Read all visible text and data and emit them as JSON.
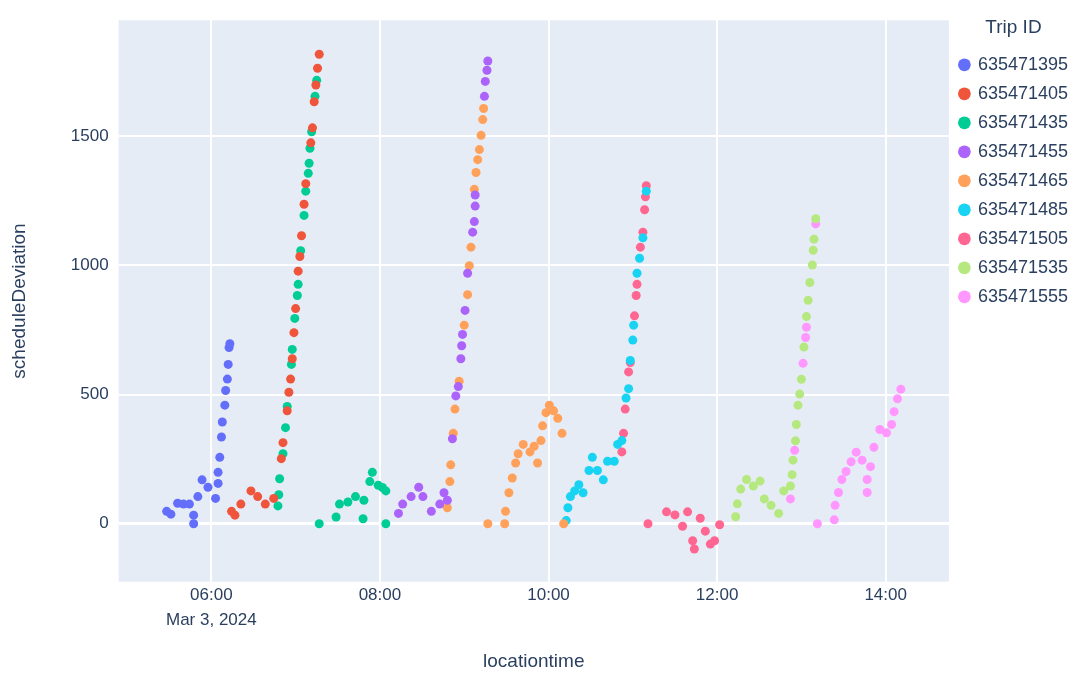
{
  "chart_data": {
    "type": "scatter",
    "xlabel": "locationtime",
    "ylabel": "scheduleDeviation",
    "legend_title": "Trip ID",
    "legend": "right",
    "grid": true,
    "marker": "circle",
    "xlim": [
      4.9,
      14.75
    ],
    "ylim": [
      -225,
      1950
    ],
    "xticks": [
      {
        "value": 6,
        "label": "06:00"
      },
      {
        "value": 8,
        "label": "08:00"
      },
      {
        "value": 10,
        "label": "10:00"
      },
      {
        "value": 12,
        "label": "12:00"
      },
      {
        "value": 14,
        "label": "14:00"
      }
    ],
    "yticks": [
      0,
      500,
      1000,
      1500
    ],
    "annotations": [
      "Mar 3, 2024"
    ],
    "series": [
      {
        "name": "635471395",
        "color": "#636efa",
        "x": [
          5.47,
          5.52,
          5.6,
          5.67,
          5.74,
          5.79,
          5.79,
          5.84,
          5.89,
          5.96,
          6.05,
          6.08,
          6.08,
          6.1,
          6.12,
          6.13,
          6.16,
          6.17,
          6.19,
          6.2,
          6.21,
          6.22
        ],
        "values": [
          48,
          37,
          79,
          76,
          76,
          33,
          0,
          105,
          170,
          141,
          98,
          156,
          199,
          257,
          336,
          394,
          459,
          516,
          560,
          617,
          682,
          697
        ]
      },
      {
        "name": "635471405",
        "color": "#ef553b",
        "x": [
          6.24,
          6.28,
          6.35,
          6.47,
          6.55,
          6.64,
          6.74,
          6.83,
          6.85,
          6.9,
          6.92,
          6.94,
          6.96,
          6.98,
          7.0,
          7.03,
          7.05,
          7.07,
          7.1,
          7.12,
          7.18,
          7.2,
          7.22,
          7.24,
          7.26,
          7.28
        ],
        "values": [
          48,
          33,
          76,
          127,
          105,
          76,
          98,
          252,
          314,
          437,
          509,
          560,
          639,
          740,
          833,
          978,
          1035,
          1115,
          1237,
          1317,
          1475,
          1533,
          1634,
          1699,
          1764,
          1818
        ]
      },
      {
        "name": "635471435",
        "color": "#00cc96",
        "x": [
          6.79,
          6.8,
          6.81,
          6.85,
          6.88,
          6.9,
          6.95,
          6.96,
          6.99,
          7.02,
          7.03,
          7.06,
          7.1,
          7.12,
          7.15,
          7.16,
          7.17,
          7.19,
          7.23,
          7.25,
          7.28,
          7.48,
          7.52,
          7.62,
          7.71,
          7.8,
          7.81,
          7.88,
          7.91,
          7.98,
          8.03,
          8.07,
          8.07
        ],
        "values": [
          69,
          112,
          174,
          271,
          372,
          454,
          617,
          675,
          795,
          884,
          927,
          1057,
          1194,
          1288,
          1357,
          1396,
          1454,
          1518,
          1655,
          1717,
          0,
          26,
          76,
          84,
          105,
          19,
          91,
          163,
          199,
          149,
          140,
          127,
          0
        ]
      },
      {
        "name": "635471455",
        "color": "#ab63fa",
        "x": [
          8.22,
          8.27,
          8.37,
          8.46,
          8.51,
          8.61,
          8.71,
          8.76,
          8.8,
          8.86,
          8.9,
          8.93,
          8.96,
          8.97,
          8.98,
          9.01,
          9.04,
          9.1,
          9.12,
          9.13,
          9.13,
          9.24,
          9.25,
          9.27,
          9.28
        ],
        "values": [
          40,
          76,
          105,
          141,
          105,
          48,
          76,
          120,
          91,
          329,
          495,
          531,
          639,
          689,
          733,
          826,
          970,
          1129,
          1170,
          1230,
          1273,
          1655,
          1713,
          1756,
          1792
        ]
      },
      {
        "name": "635471465",
        "color": "#ffa15a",
        "x": [
          8.8,
          8.83,
          8.84,
          8.87,
          8.89,
          8.94,
          9.0,
          9.04,
          9.06,
          9.08,
          9.12,
          9.14,
          9.16,
          9.18,
          9.2,
          9.22,
          9.23,
          9.28,
          9.48,
          9.49,
          9.53,
          9.57,
          9.61,
          9.64,
          9.7,
          9.78,
          9.83,
          9.87,
          9.91,
          9.93,
          9.97,
          10.01,
          10.06,
          10.11,
          10.16,
          10.18
        ],
        "values": [
          62,
          163,
          228,
          350,
          444,
          552,
          769,
          887,
          999,
          1071,
          1295,
          1360,
          1410,
          1449,
          1504,
          1565,
          1608,
          0,
          0,
          48,
          120,
          177,
          235,
          271,
          307,
          278,
          300,
          235,
          322,
          379,
          430,
          459,
          437,
          408,
          350,
          0
        ]
      },
      {
        "name": "635471485",
        "color": "#19d3f3",
        "x": [
          10.21,
          10.23,
          10.26,
          10.31,
          10.36,
          10.41,
          10.48,
          10.52,
          10.58,
          10.65,
          10.7,
          10.78,
          10.82,
          10.87,
          10.92,
          10.95,
          10.97,
          11.0,
          11.01,
          11.05,
          11.08,
          11.12,
          11.16
        ],
        "values": [
          12,
          62,
          105,
          127,
          151,
          120,
          206,
          257,
          206,
          170,
          242,
          242,
          307,
          322,
          487,
          523,
          632,
          711,
          769,
          970,
          1028,
          1107,
          1288
        ]
      },
      {
        "name": "635471505",
        "color": "#ff6692",
        "x": [
          10.87,
          10.89,
          10.91,
          10.95,
          10.97,
          11.02,
          11.04,
          11.05,
          11.09,
          11.12,
          11.14,
          11.15,
          11.16,
          11.18,
          11.4,
          11.5,
          11.59,
          11.65,
          11.71,
          11.73,
          11.8,
          11.86,
          11.92,
          11.97,
          12.03
        ],
        "values": [
          278,
          350,
          444,
          588,
          624,
          805,
          884,
          927,
          1071,
          1129,
          1216,
          1266,
          1309,
          0,
          46,
          34,
          -10,
          46,
          -66,
          -98,
          21,
          -29,
          -79,
          -66,
          -4
        ]
      },
      {
        "name": "635471535",
        "color": "#b6e880",
        "x": [
          12.22,
          12.24,
          12.28,
          12.35,
          12.43,
          12.51,
          12.56,
          12.64,
          12.73,
          12.79,
          12.87,
          12.89,
          12.9,
          12.93,
          12.94,
          12.96,
          12.98,
          13.0,
          13.03,
          13.06,
          13.08,
          13.1,
          13.13,
          13.14,
          13.15,
          13.17
        ],
        "values": [
          27,
          77,
          134,
          171,
          146,
          165,
          96,
          71,
          40,
          127,
          146,
          190,
          246,
          321,
          384,
          459,
          502,
          559,
          684,
          802,
          865,
          934,
          1002,
          1059,
          1102,
          1181
        ]
      },
      {
        "name": "635471555",
        "color": "#ff97ff",
        "x": [
          12.87,
          12.92,
          13.02,
          13.05,
          13.06,
          13.17,
          13.19,
          13.39,
          13.4,
          13.44,
          13.48,
          13.53,
          13.59,
          13.65,
          13.72,
          13.78,
          13.78,
          13.82,
          13.86,
          13.93,
          14.01,
          14.07,
          14.1,
          14.14,
          14.18
        ],
        "values": [
          96,
          284,
          621,
          721,
          761,
          1161,
          0,
          15,
          71,
          121,
          171,
          202,
          240,
          277,
          246,
          121,
          171,
          221,
          296,
          365,
          352,
          384,
          434,
          484,
          521
        ]
      }
    ]
  }
}
